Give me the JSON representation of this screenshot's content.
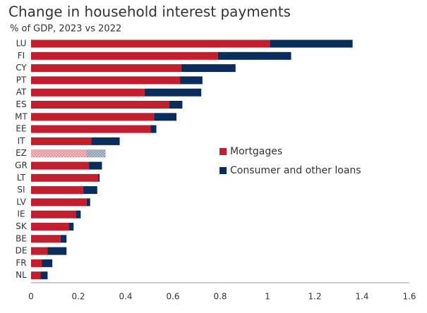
{
  "chart_data": {
    "type": "stacked_barh",
    "title": "Change in household interest payments",
    "subtitle": "% of GDP, 2023 vs 2022",
    "categories": [
      "LU",
      "FI",
      "CY",
      "PT",
      "AT",
      "ES",
      "MT",
      "EE",
      "IT",
      "EZ",
      "GR",
      "LT",
      "SI",
      "LV",
      "IE",
      "SK",
      "BE",
      "DE",
      "FR",
      "NL"
    ],
    "series": [
      {
        "name": "Mortgages",
        "color": "#c0202e",
        "values": [
          1.01,
          0.79,
          0.635,
          0.63,
          0.48,
          0.585,
          0.52,
          0.505,
          0.255,
          0.235,
          0.245,
          0.285,
          0.22,
          0.235,
          0.19,
          0.16,
          0.125,
          0.07,
          0.045,
          0.04
        ]
      },
      {
        "name": "Consumer and other loans",
        "color": "#0b2d5b",
        "values": [
          0.35,
          0.31,
          0.23,
          0.095,
          0.24,
          0.055,
          0.095,
          0.025,
          0.12,
          0.08,
          0.055,
          0.005,
          0.06,
          0.015,
          0.02,
          0.02,
          0.025,
          0.08,
          0.045,
          0.03
        ]
      }
    ],
    "highlight": [
      "EZ"
    ],
    "xlim": [
      0,
      1.6
    ],
    "xticks": [
      0,
      0.2,
      0.4,
      0.6,
      0.8,
      1,
      1.2,
      1.4,
      1.6
    ]
  }
}
